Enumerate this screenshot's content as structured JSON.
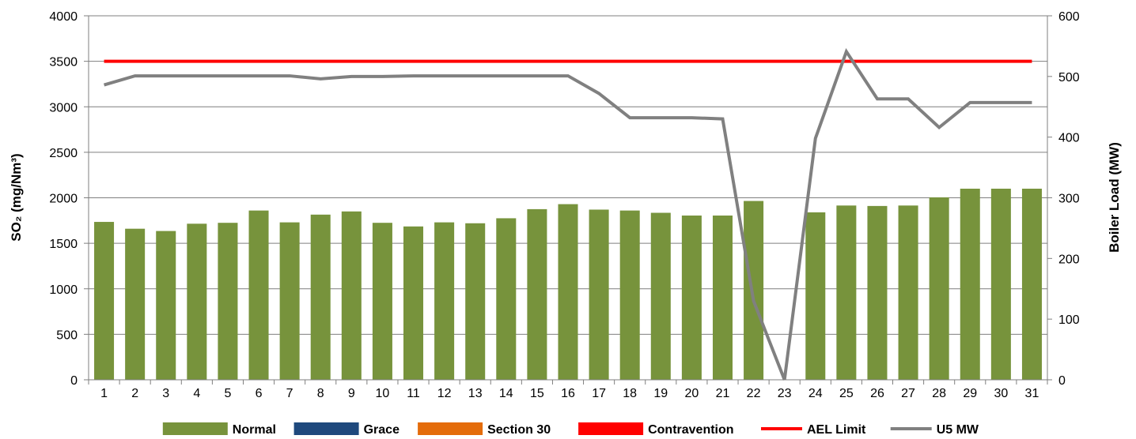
{
  "chart_data": {
    "type": "bar",
    "categories": [
      "1",
      "2",
      "3",
      "4",
      "5",
      "6",
      "7",
      "8",
      "9",
      "10",
      "11",
      "12",
      "13",
      "14",
      "15",
      "16",
      "17",
      "18",
      "19",
      "20",
      "21",
      "22",
      "23",
      "24",
      "25",
      "26",
      "27",
      "28",
      "29",
      "30",
      "31"
    ],
    "series": [
      {
        "name": "Normal",
        "type": "bar",
        "axis": "left",
        "color": "#77933C",
        "values": [
          1735,
          1660,
          1635,
          1715,
          1725,
          1860,
          1730,
          1815,
          1850,
          1725,
          1685,
          1730,
          1720,
          1775,
          1875,
          1930,
          1870,
          1860,
          1835,
          1805,
          1805,
          1965,
          0,
          1840,
          1915,
          1910,
          1915,
          2005,
          2100,
          2100,
          2100
        ]
      },
      {
        "name": "Grace",
        "type": "bar",
        "axis": "left",
        "color": "#1F497D",
        "values": [
          0,
          0,
          0,
          0,
          0,
          0,
          0,
          0,
          0,
          0,
          0,
          0,
          0,
          0,
          0,
          0,
          0,
          0,
          0,
          0,
          0,
          0,
          0,
          0,
          0,
          0,
          0,
          0,
          0,
          0,
          0
        ]
      },
      {
        "name": "Section 30",
        "type": "bar",
        "axis": "left",
        "color": "#E46C0A",
        "values": [
          0,
          0,
          0,
          0,
          0,
          0,
          0,
          0,
          0,
          0,
          0,
          0,
          0,
          0,
          0,
          0,
          0,
          0,
          0,
          0,
          0,
          0,
          0,
          0,
          0,
          0,
          0,
          0,
          0,
          0,
          0
        ]
      },
      {
        "name": "Contravention",
        "type": "bar",
        "axis": "left",
        "color": "#FF0000",
        "values": [
          0,
          0,
          0,
          0,
          0,
          0,
          0,
          0,
          0,
          0,
          0,
          0,
          0,
          0,
          0,
          0,
          0,
          0,
          0,
          0,
          0,
          0,
          0,
          0,
          0,
          0,
          0,
          0,
          0,
          0,
          0
        ]
      },
      {
        "name": "AEL Limit",
        "type": "line",
        "axis": "left",
        "color": "#FF0000",
        "values": [
          3500,
          3500,
          3500,
          3500,
          3500,
          3500,
          3500,
          3500,
          3500,
          3500,
          3500,
          3500,
          3500,
          3500,
          3500,
          3500,
          3500,
          3500,
          3500,
          3500,
          3500,
          3500,
          3500,
          3500,
          3500,
          3500,
          3500,
          3500,
          3500,
          3500,
          3500
        ]
      },
      {
        "name": "U5 MW",
        "type": "line",
        "axis": "right",
        "color": "#808080",
        "values": [
          486,
          501,
          501,
          501,
          501,
          501,
          501,
          496,
          500,
          500,
          501,
          501,
          501,
          501,
          501,
          501,
          472,
          432,
          432,
          432,
          430,
          130,
          0,
          398,
          541,
          463,
          463,
          416,
          457,
          457,
          457
        ]
      }
    ],
    "ylabel": "SO₂ (mg/Nm³)",
    "y2label": "Boiler Load (MW)",
    "ylim": [
      0,
      4000
    ],
    "yticks": [
      0,
      500,
      1000,
      1500,
      2000,
      2500,
      3000,
      3500,
      4000
    ],
    "y2lim": [
      0,
      600
    ],
    "y2ticks": [
      0,
      100,
      200,
      300,
      400,
      500,
      600
    ],
    "grid": true,
    "legend_position": "bottom"
  }
}
